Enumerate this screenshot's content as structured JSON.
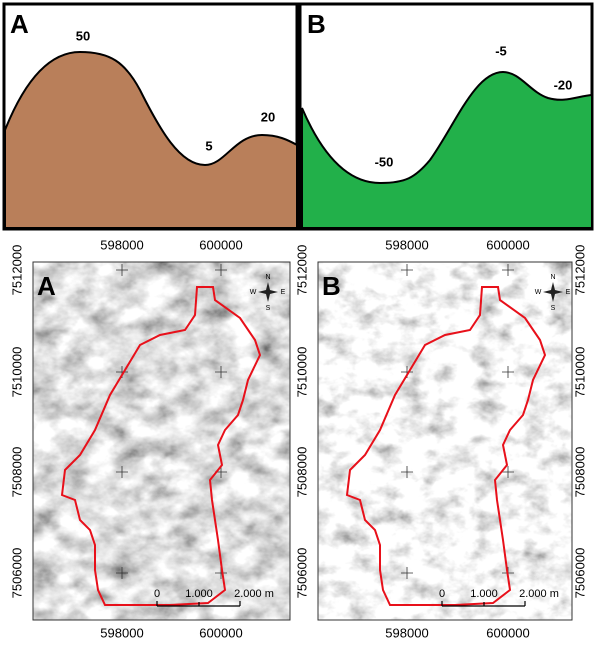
{
  "profiles": [
    {
      "panel": "A",
      "labels": [
        "50",
        "5",
        "20"
      ]
    },
    {
      "panel": "B",
      "labels": [
        "-50",
        "-5",
        "-20"
      ]
    }
  ],
  "maps": [
    {
      "panel": "A",
      "x_ticks": [
        "598000",
        "600000"
      ],
      "y_ticks": [
        "7512000",
        "7510000",
        "7508000",
        "7506000"
      ],
      "compass": [
        "N",
        "E",
        "S",
        "W"
      ],
      "scale": [
        "0",
        "1.000",
        "2.000 m"
      ]
    },
    {
      "panel": "B",
      "x_ticks": [
        "598000",
        "600000"
      ],
      "y_ticks": [
        "7512000",
        "7510000",
        "7508000",
        "7506000"
      ],
      "compass": [
        "N",
        "E",
        "S",
        "W"
      ],
      "scale": [
        "0",
        "1.000",
        "2.000 m"
      ]
    }
  ]
}
